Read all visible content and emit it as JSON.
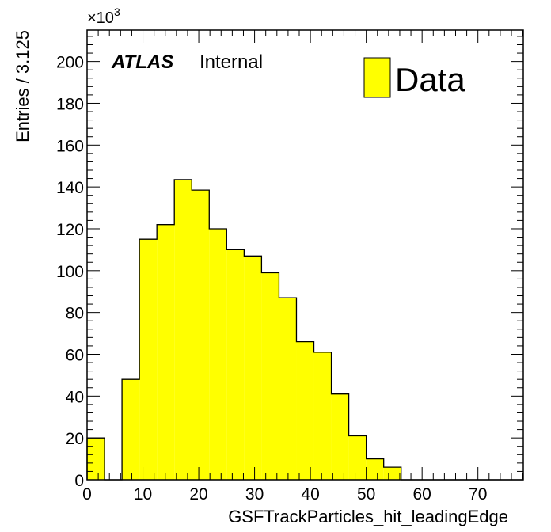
{
  "chart_data": {
    "type": "bar",
    "title": "",
    "xlabel": "GSFTrackParticles_hit_leadingEdge",
    "ylabel": "Entries / 3.125",
    "y_multiplier": "×10",
    "y_multiplier_exponent": "3",
    "xlim": [
      0,
      78.125
    ],
    "ylim": [
      0,
      215
    ],
    "x_ticks": [
      0,
      10,
      20,
      30,
      40,
      50,
      60,
      70
    ],
    "y_ticks": [
      0,
      20,
      40,
      60,
      80,
      100,
      120,
      140,
      160,
      180,
      200
    ],
    "bin_width": 3.125,
    "bin_edges": [
      0,
      3.125,
      6.25,
      9.375,
      12.5,
      15.625,
      18.75,
      21.875,
      25,
      28.125,
      31.25,
      34.375,
      37.5,
      40.625,
      43.75,
      46.875,
      50,
      53.125,
      56.25,
      59.375,
      62.5,
      65.625,
      68.75,
      71.875,
      75,
      78.125
    ],
    "values": [
      20,
      0,
      48,
      115,
      122,
      143.5,
      138.5,
      120,
      110,
      107,
      99,
      87,
      66,
      61,
      41,
      21,
      10,
      6,
      0,
      0,
      0,
      0,
      0,
      0,
      0
    ],
    "series": [
      {
        "name": "Data",
        "color": "#ffff00",
        "edge_color": "#000000"
      }
    ],
    "grid": false,
    "legend_position": "top-right",
    "annotation": {
      "experiment": "ATLAS",
      "status": "Internal"
    }
  }
}
